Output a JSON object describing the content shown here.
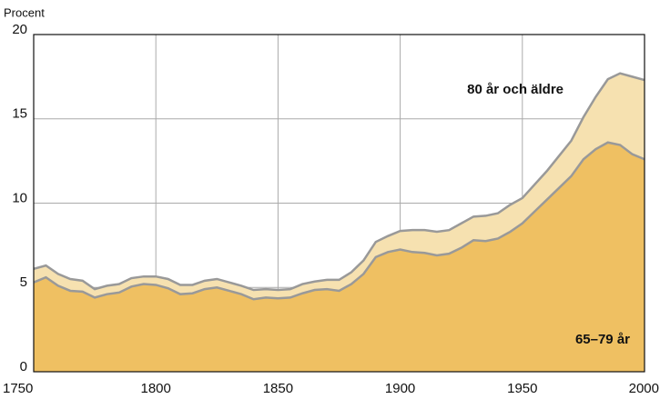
{
  "chart_data": {
    "type": "stacked-area",
    "ylabel": "Procent",
    "x": [
      1750,
      1755,
      1760,
      1765,
      1770,
      1775,
      1780,
      1785,
      1790,
      1795,
      1800,
      1805,
      1810,
      1815,
      1820,
      1825,
      1830,
      1835,
      1840,
      1845,
      1850,
      1855,
      1860,
      1865,
      1870,
      1875,
      1880,
      1885,
      1890,
      1895,
      1900,
      1905,
      1910,
      1915,
      1920,
      1925,
      1930,
      1935,
      1940,
      1945,
      1950,
      1955,
      1960,
      1965,
      1970,
      1975,
      1980,
      1985,
      1990,
      1995,
      2000
    ],
    "series": [
      {
        "name": "65–79 år",
        "color": "#efc062",
        "values": [
          5.3,
          5.6,
          5.1,
          4.8,
          4.75,
          4.4,
          4.6,
          4.7,
          5.05,
          5.2,
          5.15,
          4.95,
          4.6,
          4.65,
          4.9,
          5.0,
          4.8,
          4.6,
          4.3,
          4.4,
          4.35,
          4.4,
          4.65,
          4.85,
          4.9,
          4.8,
          5.2,
          5.8,
          6.8,
          7.1,
          7.25,
          7.1,
          7.05,
          6.9,
          7.0,
          7.35,
          7.8,
          7.75,
          7.9,
          8.3,
          8.8,
          9.5,
          10.2,
          10.9,
          11.6,
          12.6,
          13.2,
          13.6,
          13.45,
          12.9,
          12.6
        ]
      },
      {
        "name": "80 år och äldre",
        "color": "#f6e1b0",
        "values": [
          0.8,
          0.7,
          0.7,
          0.7,
          0.65,
          0.5,
          0.5,
          0.5,
          0.5,
          0.45,
          0.5,
          0.55,
          0.55,
          0.5,
          0.5,
          0.5,
          0.5,
          0.5,
          0.55,
          0.5,
          0.5,
          0.5,
          0.55,
          0.5,
          0.55,
          0.65,
          0.7,
          0.8,
          0.9,
          0.95,
          1.1,
          1.3,
          1.35,
          1.4,
          1.4,
          1.45,
          1.4,
          1.5,
          1.5,
          1.6,
          1.5,
          1.6,
          1.7,
          1.9,
          2.1,
          2.5,
          3.1,
          3.75,
          4.25,
          4.6,
          4.7
        ]
      }
    ],
    "xlim": [
      1750,
      2000
    ],
    "xticks": [
      1750,
      1800,
      1850,
      1900,
      1950,
      2000
    ],
    "ylim": [
      0,
      20
    ],
    "yticks": [
      0,
      5,
      10,
      15,
      20
    ],
    "grid": true
  }
}
